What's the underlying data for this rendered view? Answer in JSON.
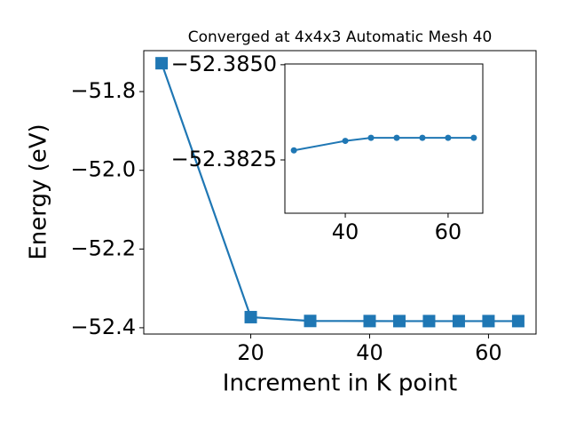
{
  "chart_data": [
    {
      "type": "line",
      "title": "Converged at 4x4x3 Automatic Mesh 40",
      "x_label": "Increment in K point",
      "y_label": "Energy (eV)",
      "x": [
        5,
        20,
        30,
        40,
        45,
        50,
        55,
        60,
        65
      ],
      "series": [
        {
          "color": "#1f77b4",
          "marker": "square",
          "values": [
            -51.728,
            -52.373,
            -52.38275,
            -52.383,
            -52.38308,
            -52.38308,
            -52.38308,
            -52.38308,
            -52.38308
          ]
        }
      ],
      "xlim": [
        2,
        68
      ],
      "ylim": [
        -52.416,
        -51.696
      ],
      "xticks": [
        20,
        40,
        60
      ],
      "yticks": [
        {
          "value": -51.8,
          "label": "−51.8"
        },
        {
          "value": -52.0,
          "label": "−52.0"
        },
        {
          "value": -52.2,
          "label": "−52.2"
        },
        {
          "value": -52.4,
          "label": "−52.4"
        }
      ]
    },
    {
      "type": "line",
      "x": [
        30,
        40,
        45,
        50,
        55,
        60,
        65
      ],
      "series": [
        {
          "color": "#1f77b4",
          "marker": "circle",
          "values": [
            -52.38275,
            -52.383,
            -52.38308,
            -52.38308,
            -52.38308,
            -52.38308,
            -52.38308
          ]
        }
      ],
      "xlim": [
        28.25,
        66.75
      ],
      "ylim": [
        -52.3811,
        -52.38502
      ],
      "xticks": [
        40,
        60
      ],
      "yticks": [
        {
          "value": -52.385,
          "label": "−52.3850"
        },
        {
          "value": -52.3825,
          "label": "−52.3825"
        }
      ]
    }
  ]
}
